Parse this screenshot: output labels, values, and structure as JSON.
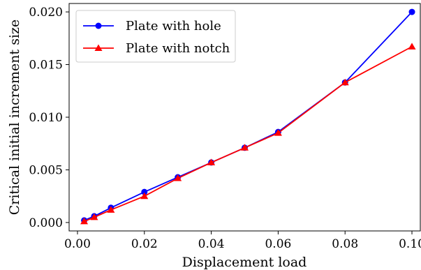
{
  "chart_data": {
    "type": "line",
    "xlabel": "Displacement load",
    "ylabel": "Critical initial increment size",
    "xlim": [
      -0.0025,
      0.1025
    ],
    "ylim": [
      -0.0008,
      0.0208
    ],
    "xticks": [
      0.0,
      0.02,
      0.04,
      0.06,
      0.08,
      0.1
    ],
    "xtick_labels": [
      "0.00",
      "0.02",
      "0.04",
      "0.06",
      "0.08",
      "0.10"
    ],
    "yticks": [
      0.0,
      0.005,
      0.01,
      0.015,
      0.02
    ],
    "ytick_labels": [
      "0.000",
      "0.005",
      "0.010",
      "0.015",
      "0.020"
    ],
    "grid": false,
    "legend_position": "top-left",
    "series": [
      {
        "name": "Plate with hole",
        "color": "#0000ff",
        "marker": "circle",
        "x": [
          0.002,
          0.005,
          0.01,
          0.02,
          0.03,
          0.04,
          0.05,
          0.06,
          0.08,
          0.1
        ],
        "y": [
          0.0002,
          0.0006,
          0.0014,
          0.0029,
          0.0043,
          0.0057,
          0.0071,
          0.0086,
          0.0133,
          0.02
        ]
      },
      {
        "name": "Plate with notch",
        "color": "#ff0000",
        "marker": "triangle",
        "x": [
          0.002,
          0.005,
          0.01,
          0.02,
          0.03,
          0.04,
          0.05,
          0.06,
          0.08,
          0.1
        ],
        "y": [
          0.0001,
          0.0005,
          0.0012,
          0.0025,
          0.0042,
          0.0057,
          0.0071,
          0.0085,
          0.0133,
          0.0167
        ]
      }
    ]
  }
}
